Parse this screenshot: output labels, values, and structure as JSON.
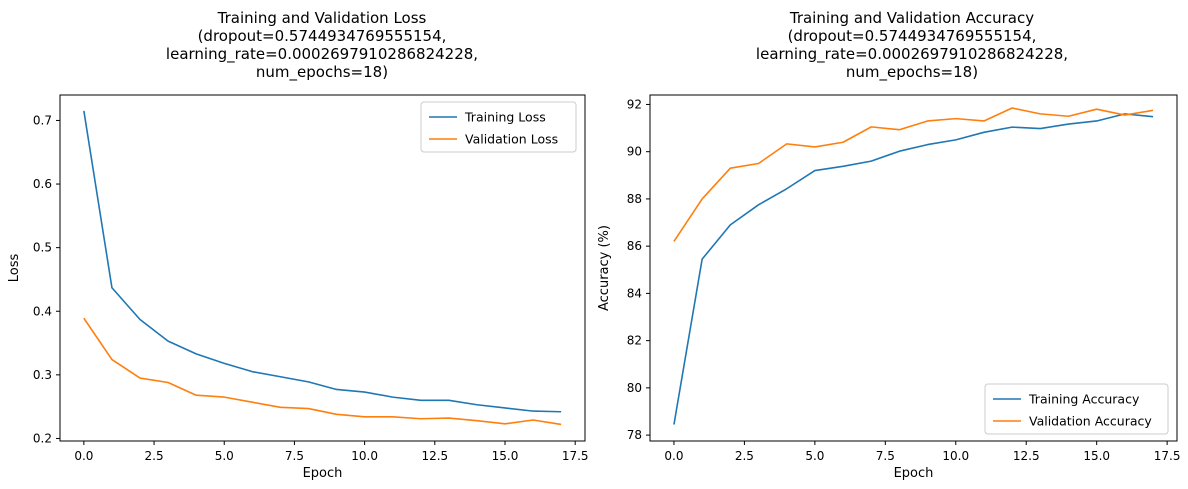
{
  "chart_data": [
    {
      "type": "line",
      "title_lines": [
        "Training and Validation Loss",
        "(dropout=0.5744934769555154,",
        "learning_rate=0.0002697910286824228,",
        "num_epochs=18)"
      ],
      "xlabel": "Epoch",
      "ylabel": "Loss",
      "xlim": [
        -0.85,
        17.85
      ],
      "ylim": [
        0.196,
        0.74
      ],
      "xticks": [
        0.0,
        2.5,
        5.0,
        7.5,
        10.0,
        12.5,
        15.0,
        17.5
      ],
      "xtick_labels": [
        "0.0",
        "2.5",
        "5.0",
        "7.5",
        "10.0",
        "12.5",
        "15.0",
        "17.5"
      ],
      "yticks": [
        0.2,
        0.3,
        0.4,
        0.5,
        0.6,
        0.7
      ],
      "ytick_labels": [
        "0.2",
        "0.3",
        "0.4",
        "0.5",
        "0.6",
        "0.7"
      ],
      "legend_position": "upper right",
      "x": [
        0,
        1,
        2,
        3,
        4,
        5,
        6,
        7,
        8,
        9,
        10,
        11,
        12,
        13,
        14,
        15,
        16,
        17
      ],
      "series": [
        {
          "name": "Training Loss",
          "color": "#1f77b4",
          "values": [
            0.715,
            0.437,
            0.387,
            0.353,
            0.333,
            0.318,
            0.305,
            0.297,
            0.289,
            0.277,
            0.273,
            0.265,
            0.26,
            0.26,
            0.253,
            0.248,
            0.243,
            0.242
          ]
        },
        {
          "name": "Validation Loss",
          "color": "#ff7f0e",
          "values": [
            0.389,
            0.324,
            0.295,
            0.288,
            0.268,
            0.265,
            0.257,
            0.249,
            0.247,
            0.238,
            0.234,
            0.234,
            0.231,
            0.232,
            0.228,
            0.223,
            0.229,
            0.222
          ]
        }
      ]
    },
    {
      "type": "line",
      "title_lines": [
        "Training and Validation Accuracy",
        "(dropout=0.5744934769555154,",
        "learning_rate=0.0002697910286824228,",
        "num_epochs=18)"
      ],
      "xlabel": "Epoch",
      "ylabel": "Accuracy (%)",
      "xlim": [
        -0.85,
        17.85
      ],
      "ylim": [
        77.75,
        92.4
      ],
      "xticks": [
        0.0,
        2.5,
        5.0,
        7.5,
        10.0,
        12.5,
        15.0,
        17.5
      ],
      "xtick_labels": [
        "0.0",
        "2.5",
        "5.0",
        "7.5",
        "10.0",
        "12.5",
        "15.0",
        "17.5"
      ],
      "yticks": [
        78,
        80,
        82,
        84,
        86,
        88,
        90,
        92
      ],
      "ytick_labels": [
        "78",
        "80",
        "82",
        "84",
        "86",
        "88",
        "90",
        "92"
      ],
      "legend_position": "lower right",
      "x": [
        0,
        1,
        2,
        3,
        4,
        5,
        6,
        7,
        8,
        9,
        10,
        11,
        12,
        13,
        14,
        15,
        16,
        17
      ],
      "series": [
        {
          "name": "Training Accuracy",
          "color": "#1f77b4",
          "values": [
            78.45,
            85.45,
            86.9,
            87.75,
            88.43,
            89.2,
            89.38,
            89.6,
            90.02,
            90.3,
            90.5,
            90.82,
            91.04,
            90.98,
            91.17,
            91.3,
            91.6,
            91.48
          ]
        },
        {
          "name": "Validation Accuracy",
          "color": "#ff7f0e",
          "values": [
            86.2,
            88.0,
            89.3,
            89.5,
            90.33,
            90.2,
            90.4,
            91.05,
            90.93,
            91.3,
            91.4,
            91.3,
            91.85,
            91.6,
            91.5,
            91.8,
            91.55,
            91.75
          ]
        }
      ]
    }
  ]
}
